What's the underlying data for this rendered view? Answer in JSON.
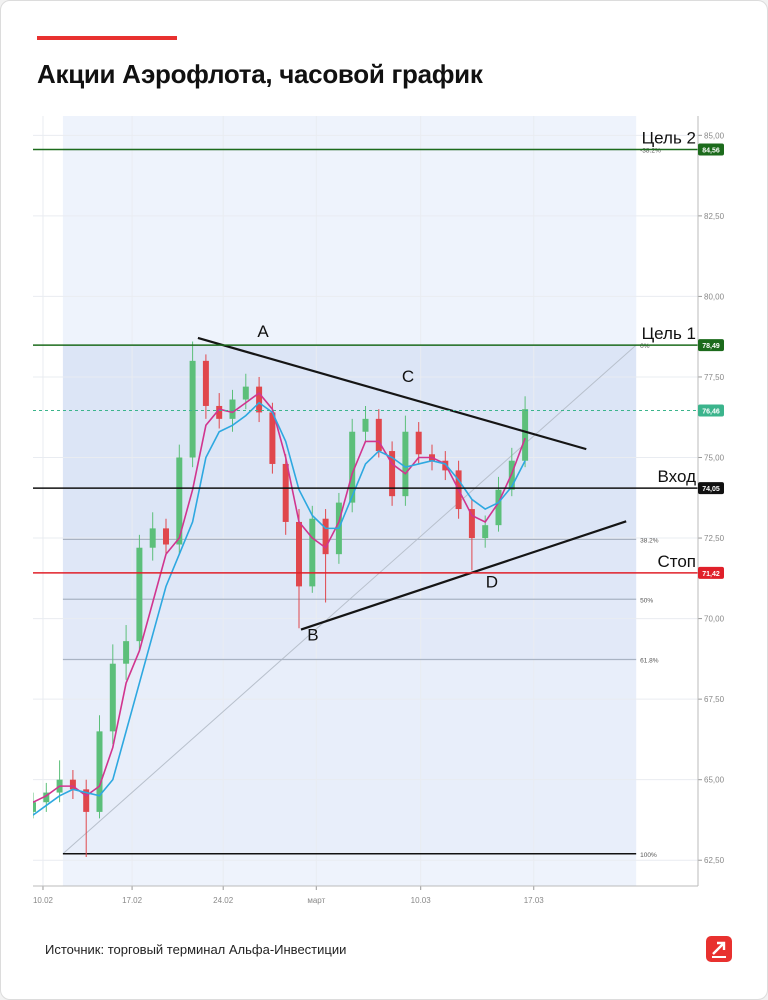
{
  "title": "Акции Аэрофлота, часовой график",
  "source": "Источник: торговый терминал Альфа-Инвестиции",
  "chart_data": {
    "type": "candlestick",
    "x": [
      0,
      2,
      4,
      6,
      8,
      10,
      12,
      14,
      16,
      18,
      20,
      22,
      24,
      26,
      28,
      30,
      32,
      34,
      36,
      38,
      40,
      42,
      44,
      46,
      48,
      50,
      52,
      54,
      56,
      58,
      60,
      62,
      64,
      66,
      68,
      70,
      72,
      74
    ],
    "open": [
      64.0,
      64.3,
      64.6,
      65.0,
      64.7,
      64.0,
      66.5,
      68.6,
      69.3,
      72.2,
      72.8,
      72.3,
      75.0,
      78.0,
      76.6,
      76.2,
      76.8,
      77.2,
      76.4,
      74.8,
      73.0,
      71.0,
      73.1,
      72.0,
      73.6,
      75.8,
      76.2,
      75.2,
      73.8,
      75.8,
      75.1,
      74.9,
      74.6,
      73.4,
      72.5,
      72.9,
      74.0,
      74.9
    ],
    "high": [
      64.6,
      64.9,
      65.6,
      65.3,
      65.0,
      67.0,
      69.2,
      69.8,
      72.6,
      73.3,
      73.1,
      75.4,
      78.6,
      78.2,
      77.0,
      77.1,
      77.6,
      77.5,
      76.7,
      75.1,
      73.4,
      73.5,
      73.4,
      73.9,
      76.2,
      76.6,
      76.5,
      75.5,
      76.3,
      76.1,
      75.4,
      75.2,
      74.9,
      73.7,
      73.2,
      74.4,
      75.3,
      76.9
    ],
    "low": [
      63.8,
      64.0,
      64.3,
      64.4,
      62.6,
      63.8,
      66.1,
      68.1,
      69.0,
      71.8,
      72.0,
      72.0,
      74.7,
      76.2,
      75.9,
      75.8,
      76.5,
      76.1,
      74.5,
      72.6,
      69.7,
      70.8,
      70.5,
      71.7,
      73.3,
      75.5,
      75.0,
      73.5,
      73.5,
      74.8,
      74.6,
      74.3,
      73.1,
      71.5,
      72.2,
      72.7,
      73.8,
      74.7
    ],
    "close": [
      64.3,
      64.6,
      65.0,
      64.7,
      64.0,
      66.5,
      68.6,
      69.3,
      72.2,
      72.8,
      72.3,
      75.0,
      78.0,
      76.6,
      76.2,
      76.8,
      77.2,
      76.4,
      74.8,
      73.0,
      71.0,
      73.1,
      72.0,
      73.6,
      75.8,
      76.2,
      75.2,
      73.8,
      75.8,
      75.1,
      74.9,
      74.6,
      73.4,
      72.5,
      72.9,
      74.0,
      74.9,
      76.5
    ],
    "up_color": "#5cbf7a",
    "down_color": "#e0474c",
    "series": [
      {
        "color": "#d1358f",
        "values": [
          64.3,
          64.5,
          64.8,
          64.8,
          64.5,
          64.8,
          66.0,
          68.0,
          69.0,
          70.5,
          72.0,
          72.5,
          74.0,
          76.0,
          76.5,
          76.4,
          76.7,
          77.0,
          76.5,
          75.0,
          73.0,
          72.5,
          72.2,
          73.0,
          74.5,
          75.5,
          75.5,
          74.8,
          74.5,
          75.0,
          75.0,
          74.8,
          74.0,
          73.2,
          73.0,
          73.6,
          74.5,
          75.6
        ]
      },
      {
        "color": "#2ea8e0",
        "values": [
          63.9,
          64.2,
          64.5,
          64.7,
          64.6,
          64.5,
          65.0,
          66.5,
          68.0,
          69.5,
          71.0,
          72.0,
          73.0,
          75.0,
          75.8,
          76.0,
          76.3,
          76.7,
          76.4,
          75.5,
          74.0,
          73.2,
          72.8,
          72.8,
          73.8,
          74.8,
          75.2,
          75.0,
          74.7,
          74.8,
          74.9,
          74.8,
          74.3,
          73.7,
          73.4,
          73.6,
          74.1,
          74.9
        ]
      }
    ],
    "levels": [
      {
        "label": "Цель 2",
        "value": 84.56,
        "value_label": "84,56",
        "color": "#1c6b1c"
      },
      {
        "label": "Цель 1",
        "value": 78.49,
        "value_label": "78,49",
        "color": "#1c6b1c"
      },
      {
        "value": 76.46,
        "value_label": "76,46",
        "color": "#3bb48c",
        "dashed": true
      },
      {
        "label": "Вход",
        "value": 74.05,
        "value_label": "74,05",
        "color": "#111111"
      },
      {
        "label": "Стоп",
        "value": 71.42,
        "value_label": "71,42",
        "color": "#e0202a"
      }
    ],
    "fibonacci": {
      "x": [
        4.5,
        90.7
      ],
      "color": "#a9b3c3",
      "levels": [
        {
          "value": 84.56,
          "label": "-38.2%"
        },
        {
          "value": 78.49,
          "label": "0%"
        },
        {
          "value": 72.46,
          "label": "38.2%"
        },
        {
          "value": 70.6,
          "label": "50%"
        },
        {
          "value": 68.73,
          "label": "61.8%"
        },
        {
          "value": 62.7,
          "label": "100%"
        }
      ]
    },
    "trendlines": [
      {
        "x": [
          24.8,
          83.2
        ],
        "y": [
          78.71,
          75.26
        ]
      },
      {
        "x": [
          40.3,
          89.2
        ],
        "y": [
          69.66,
          73.02
        ]
      }
    ],
    "points": [
      {
        "label": "A",
        "x": 34.6,
        "y": 78.93
      },
      {
        "label": "C",
        "x": 56.4,
        "y": 77.53
      },
      {
        "label": "B",
        "x": 42.1,
        "y": 69.5
      },
      {
        "label": "D",
        "x": 69.0,
        "y": 71.15
      }
    ],
    "xlim": [
      0,
      100
    ],
    "xticks": [
      {
        "value": 1.5,
        "label": "10.02"
      },
      {
        "value": 14.9,
        "label": "17.02"
      },
      {
        "value": 28.6,
        "label": "24.02"
      },
      {
        "value": 42.6,
        "label": "март"
      },
      {
        "value": 58.3,
        "label": "10.03"
      },
      {
        "value": 75.3,
        "label": "17.03"
      }
    ],
    "ylim": [
      61.7,
      85.6
    ],
    "yticks": [
      {
        "value": 62.5,
        "label": "62,50"
      },
      {
        "value": 65,
        "label": "65,00"
      },
      {
        "value": 67.5,
        "label": "67,50"
      },
      {
        "value": 70,
        "label": "70,00"
      },
      {
        "value": 72.5,
        "label": "72,50"
      },
      {
        "value": 75,
        "label": "75,00"
      },
      {
        "value": 77.5,
        "label": "77,50"
      },
      {
        "value": 80,
        "label": "80,00"
      },
      {
        "value": 82.5,
        "label": "82,50"
      },
      {
        "value": 85,
        "label": "85,00"
      }
    ],
    "grid": true
  }
}
